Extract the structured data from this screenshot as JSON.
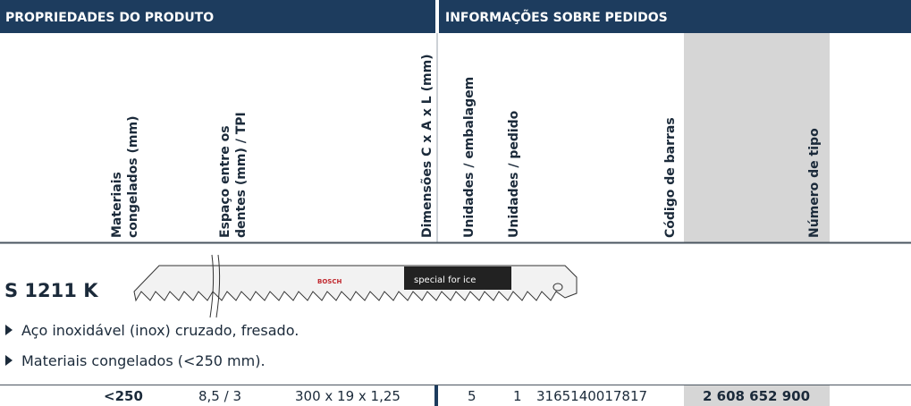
{
  "header": {
    "left": "PROPRIEDADES DO PRODUTO",
    "right": "INFORMAÇÕES SOBRE PEDIDOS"
  },
  "table": {
    "columns": [
      [
        "Materiais",
        "congelados (mm)"
      ],
      [
        "Espaço entre os",
        "dentes (mm) / TPI"
      ],
      [
        "Dimensões C x A x L (mm)"
      ],
      [
        "Unidades / embalagem"
      ],
      [
        "Unidades / pedido"
      ],
      [
        "Código de barras"
      ],
      [
        "Número de tipo"
      ]
    ],
    "rows": [
      [
        "<250",
        "8,5 / 3",
        "300 x 19 x 1,25",
        "5",
        "1",
        "3165140017817",
        "2 608 652 900"
      ]
    ]
  },
  "product": {
    "name": "S 1211 K",
    "blade": {
      "brand": "BOSCH",
      "label": "special for ice"
    },
    "features": [
      "Aço inoxidável (inox) cruzado, fresado.",
      "Materiais congelados (<250 mm)."
    ]
  }
}
